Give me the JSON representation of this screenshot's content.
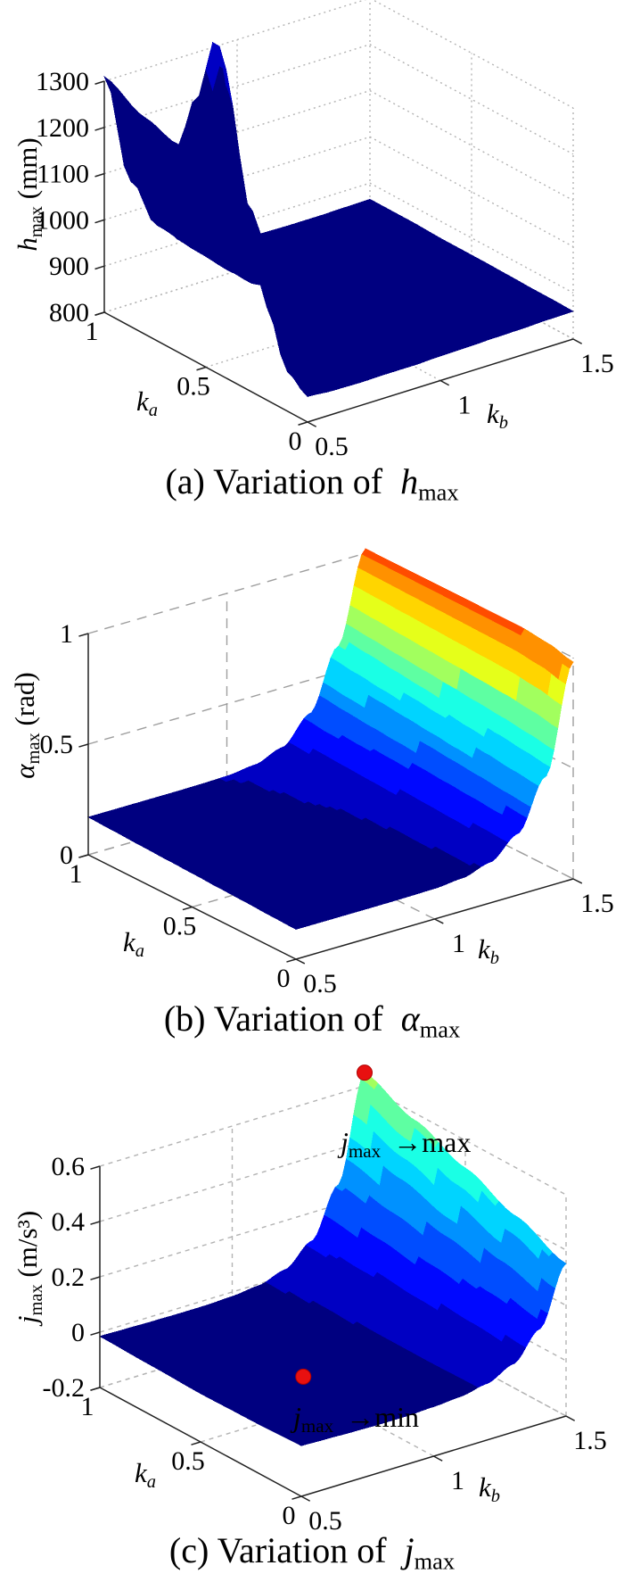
{
  "figure": {
    "background": "#ffffff"
  },
  "chart_data": [
    {
      "id": "a",
      "type": "surface3d",
      "caption_prefix": "(a) Variation of",
      "var": "h",
      "var_sub": "max",
      "x_axis": {
        "var": "k",
        "sub": "a",
        "tick_values": [
          0,
          0.5,
          1
        ],
        "tick_labels": [
          "0",
          "0.5",
          "1"
        ],
        "range": [
          0,
          1
        ]
      },
      "y_axis": {
        "var": "k",
        "sub": "b",
        "tick_values": [
          0.5,
          1,
          1.5
        ],
        "tick_labels": [
          "0.5",
          "1",
          "1.5"
        ],
        "range": [
          0.5,
          1.5
        ]
      },
      "z_axis": {
        "var": "h",
        "sub": "max",
        "unit": "(mm)",
        "tick_values": [
          800,
          900,
          1000,
          1100,
          1200,
          1300
        ],
        "tick_labels": [
          "800",
          "900",
          "1000",
          "1100",
          "1200",
          "1300"
        ],
        "range": [
          800,
          1300
        ]
      },
      "colormap": "jet",
      "caxis": [
        800,
        20000
      ],
      "grid_on": true,
      "surface": {
        "ka": [
          0,
          0.1,
          0.2,
          0.3,
          0.45,
          0.55,
          0.64,
          0.8,
          1
        ],
        "kb": [
          0.5,
          0.6,
          0.7,
          0.8,
          0.9,
          1.0,
          1.1,
          1.2,
          1.3,
          1.4,
          1.5
        ],
        "z": [
          [
            855,
            851,
            850,
            851,
            851,
            853,
            854,
            856,
            857,
            859,
            860
          ],
          [
            886,
            866,
            857,
            854,
            853,
            854,
            855,
            856,
            858,
            859,
            861
          ],
          [
            1001,
            919,
            881,
            866,
            859,
            857,
            857,
            857,
            858,
            860,
            861
          ],
          [
            1168,
            995,
            918,
            883,
            867,
            861,
            859,
            858,
            859,
            860,
            862
          ],
          [
            1522,
            1162,
            995,
            919,
            884,
            869,
            863,
            861,
            861,
            861,
            863
          ],
          [
            1368,
            1090,
            963,
            904,
            878,
            866,
            862,
            861,
            861,
            862,
            863
          ],
          [
            1248,
            1035,
            937,
            893,
            873,
            864,
            861,
            861,
            861,
            862,
            863
          ],
          [
            1269,
            1045,
            942,
            896,
            875,
            867,
            863,
            862,
            863,
            864,
            865
          ],
          [
            1310,
            1065,
            952,
            901,
            878,
            867,
            864,
            863,
            863,
            864,
            865
          ]
        ]
      }
    },
    {
      "id": "b",
      "type": "surface3d",
      "caption_prefix": "(b) Variation of",
      "var": "α",
      "var_sub": "max",
      "x_axis": {
        "var": "k",
        "sub": "a",
        "tick_values": [
          0,
          0.5,
          1
        ],
        "tick_labels": [
          "0",
          "0.5",
          "1"
        ],
        "range": [
          0,
          1
        ]
      },
      "y_axis": {
        "var": "k",
        "sub": "b",
        "tick_values": [
          0.5,
          1,
          1.5
        ],
        "tick_labels": [
          "0.5",
          "1",
          "1.5"
        ],
        "range": [
          0.5,
          1.5
        ]
      },
      "z_axis": {
        "var": "α",
        "sub": "max",
        "unit": "(rad)",
        "tick_values": [
          0,
          0.5,
          1
        ],
        "tick_labels": [
          "0",
          "0.5",
          "1"
        ],
        "range": [
          0,
          1
        ]
      },
      "colormap": "jet",
      "caxis": [
        0.135,
        1.27
      ],
      "grid_on": true,
      "surface": {
        "ka": [
          0,
          0.125,
          0.25,
          0.375,
          0.5,
          0.625,
          0.75,
          0.875,
          1
        ],
        "kb": [
          0.5,
          0.6,
          0.7,
          0.8,
          0.9,
          1.0,
          1.1,
          1.2,
          1.3,
          1.4,
          1.5
        ],
        "z": [
          [
            0.135,
            0.135,
            0.135,
            0.135,
            0.136,
            0.138,
            0.149,
            0.184,
            0.277,
            0.499,
            0.98
          ],
          [
            0.139,
            0.139,
            0.139,
            0.139,
            0.14,
            0.142,
            0.154,
            0.189,
            0.285,
            0.513,
            1.008
          ],
          [
            0.144,
            0.144,
            0.144,
            0.144,
            0.145,
            0.147,
            0.159,
            0.195,
            0.294,
            0.528,
            1.02
          ],
          [
            0.148,
            0.148,
            0.148,
            0.148,
            0.149,
            0.152,
            0.163,
            0.201,
            0.302,
            0.542,
            1.02
          ],
          [
            0.153,
            0.153,
            0.153,
            0.153,
            0.154,
            0.157,
            0.169,
            0.207,
            0.31,
            0.557,
            1.02
          ],
          [
            0.157,
            0.157,
            0.157,
            0.157,
            0.158,
            0.161,
            0.173,
            0.212,
            0.318,
            0.571,
            1.02
          ],
          [
            0.161,
            0.161,
            0.161,
            0.161,
            0.162,
            0.165,
            0.178,
            0.218,
            0.326,
            0.585,
            1.02
          ],
          [
            0.166,
            0.166,
            0.166,
            0.166,
            0.167,
            0.17,
            0.183,
            0.224,
            0.335,
            0.6,
            1.02
          ],
          [
            0.17,
            0.17,
            0.17,
            0.17,
            0.171,
            0.174,
            0.188,
            0.231,
            0.348,
            0.614,
            1.02
          ]
        ]
      }
    },
    {
      "id": "c",
      "type": "surface3d",
      "caption_prefix": "(c) Variation of",
      "var": "j",
      "var_sub": "max",
      "x_axis": {
        "var": "k",
        "sub": "a",
        "tick_values": [
          0,
          0.5,
          1
        ],
        "tick_labels": [
          "0",
          "0.5",
          "1"
        ],
        "range": [
          0,
          1
        ]
      },
      "y_axis": {
        "var": "k",
        "sub": "b",
        "tick_values": [
          0.5,
          1,
          1.5
        ],
        "tick_labels": [
          "0.5",
          "1",
          "1.5"
        ],
        "range": [
          0.5,
          1.5
        ]
      },
      "z_axis": {
        "var": "j",
        "sub": "max",
        "unit": "(m/s³)",
        "tick_values": [
          -0.2,
          0,
          0.2,
          0.4,
          0.6
        ],
        "tick_labels": [
          "-0.2",
          "0",
          "0.2",
          "0.4",
          "0.6"
        ],
        "range": [
          -0.2,
          0.6
        ]
      },
      "colormap": "jet",
      "caxis": [
        -0.046,
        1.289
      ],
      "grid_on": true,
      "surface": {
        "ka": [
          0,
          0.25,
          0.5,
          0.75,
          1
        ],
        "kb": [
          0.5,
          0.6,
          0.7,
          0.8,
          0.9,
          1.0,
          1.1,
          1.2,
          1.3,
          1.4,
          1.5
        ],
        "z": [
          [
            -0.017,
            -0.02,
            -0.023,
            -0.025,
            -0.025,
            -0.021,
            -0.014,
            0.004,
            0.046,
            0.144,
            0.351
          ],
          [
            -0.023,
            -0.029,
            -0.036,
            -0.04,
            -0.04,
            -0.034,
            -0.022,
            0.003,
            0.056,
            0.174,
            0.425
          ],
          [
            -0.025,
            -0.033,
            -0.041,
            -0.046,
            -0.046,
            -0.039,
            -0.024,
            0.005,
            0.067,
            0.205,
            0.5
          ],
          [
            -0.02,
            -0.025,
            -0.031,
            -0.034,
            -0.034,
            -0.029,
            -0.015,
            0.014,
            0.082,
            0.238,
            0.574
          ],
          [
            -0.015,
            -0.017,
            -0.019,
            -0.02,
            -0.02,
            -0.016,
            -0.006,
            0.023,
            0.097,
            0.271,
            0.648
          ]
        ]
      },
      "annotations": [
        {
          "id": "max",
          "var": "j",
          "var_sub": "max",
          "label": "→max",
          "point": {
            "ka": 1,
            "kb": 1.5,
            "z": 0.648
          },
          "dot_color": "#e81010"
        },
        {
          "id": "min",
          "var": "j",
          "var_sub": "max",
          "label": "→min",
          "point": {
            "ka": 0.45,
            "kb": 0.85,
            "z": -0.046
          },
          "dot_color": "#e81010"
        }
      ]
    }
  ]
}
